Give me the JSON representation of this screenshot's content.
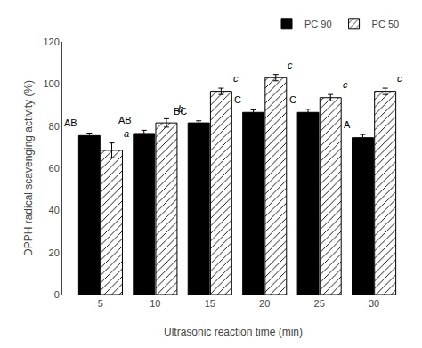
{
  "chart_data": {
    "type": "bar",
    "categories": [
      "5",
      "10",
      "15",
      "20",
      "25",
      "30"
    ],
    "series": [
      {
        "name": "PC 90",
        "color": "#000000",
        "values": [
          75.5,
          76.5,
          81.5,
          86.5,
          86.5,
          74.5
        ],
        "errors": [
          1.2,
          1.5,
          1.0,
          1.2,
          1.5,
          1.5
        ],
        "annotations": [
          "AB",
          "AB",
          "BC",
          "C",
          "C",
          "A"
        ]
      },
      {
        "name": "PC 50",
        "color": "#ffffff",
        "values": [
          68.5,
          81.5,
          96.5,
          103.0,
          93.5,
          96.5
        ],
        "errors": [
          3.5,
          2.0,
          1.5,
          1.5,
          1.5,
          1.5
        ],
        "annotations": [
          "a",
          "b",
          "c",
          "c",
          "c",
          "c"
        ]
      }
    ],
    "xlabel": "Ultrasonic reaction time (min)",
    "ylabel": "DPPH radical scavenging activity (%)",
    "ylim": [
      0,
      120
    ],
    "yticks": [
      0,
      20,
      40,
      60,
      80,
      100,
      120
    ],
    "legend": "upper right",
    "grid": false
  }
}
